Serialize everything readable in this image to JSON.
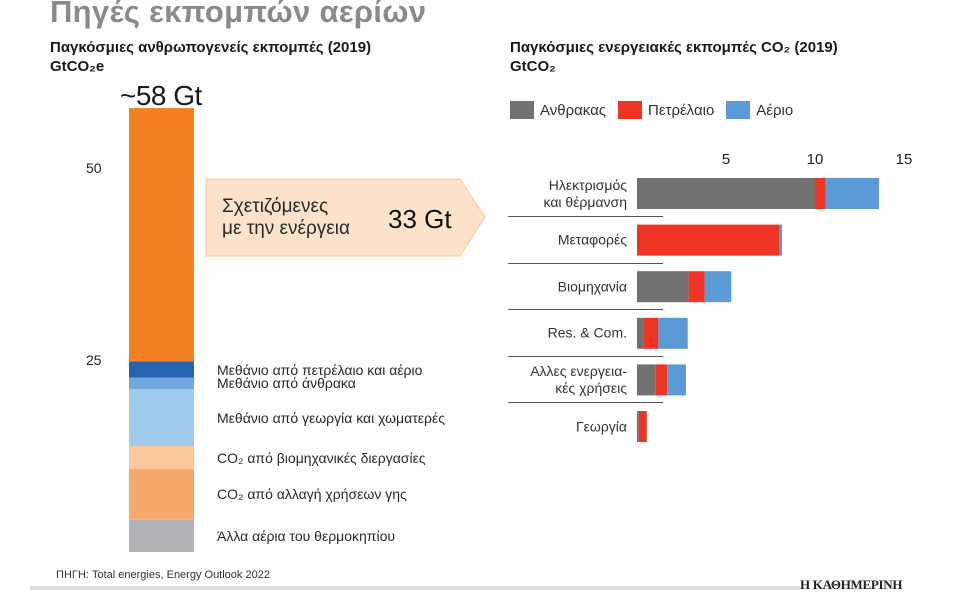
{
  "title": "Πηγές εκπομπών αερίων",
  "footer": {
    "source": "ΠΗΓΗ: Total energies, Energy Outlook 2022",
    "logo": "Η ΚΑΘΗΜΕΡΙΝΗ"
  },
  "chart_data": [
    {
      "type": "bar",
      "stacked": true,
      "title": "Παγκόσμιες ανθρωπογενείς εκπομπές (2019)",
      "ylabel": "GtCO₂e",
      "total_label": "~58 Gt",
      "ylim": [
        0,
        58
      ],
      "yticks": [
        "25",
        "50"
      ],
      "ytick_values": [
        25,
        50
      ],
      "segments": [
        {
          "name": "Άλλα αέρια του θερμοκηπίου",
          "value": 4.2,
          "color": "#B1B2B5"
        },
        {
          "name": "CO₂ από αλλαγή χρήσεων γης",
          "value": 6.6,
          "color": "#F6A86A"
        },
        {
          "name": "CO₂ από βιομηχανικές διεργασίες",
          "value": 3.0,
          "color": "#FCC79A"
        },
        {
          "name": "Μεθάνιο από γεωργία και χωματερές",
          "value": 7.4,
          "color": "#9ECAEC"
        },
        {
          "name": "Μεθάνιο από άνθρακα",
          "value": 1.5,
          "color": "#6FA8DC"
        },
        {
          "name": "Μεθάνιο από πετρέλαιο και αέριο",
          "value": 2.1,
          "color": "#2563B0"
        },
        {
          "name": "Σχετιζόμενες με την ενέργεια",
          "value": 33,
          "color": "#F47F20",
          "unlabeled": true
        }
      ],
      "callout": {
        "line1": "Σχετιζόμενες",
        "line2": "με την ενέργεια",
        "value": "33 Gt",
        "color": "#FCE1CB"
      }
    },
    {
      "type": "bar",
      "orientation": "horizontal",
      "stacked": true,
      "title": "Παγκόσμιες ενεργειακές εκπομπές CO₂ (2019)",
      "xlabel": "GtCO₂",
      "xlim": [
        0,
        15
      ],
      "xticks": [
        "5",
        "10",
        "15"
      ],
      "xtick_values": [
        5,
        10,
        15
      ],
      "legend": "top-left",
      "categories": [
        [
          "Ηλεκτρισμός",
          "και θέρμανση"
        ],
        [
          "Μεταφορές"
        ],
        [
          "Βιομηχανία"
        ],
        [
          "Res. & Com."
        ],
        [
          "Αλλες ενεργεια-",
          "κές χρήσεις"
        ],
        [
          "Γεωργία"
        ]
      ],
      "series": [
        {
          "name": "Ανθρακας",
          "color": "#717174",
          "values": [
            10.0,
            0,
            2.9,
            0.35,
            1.05,
            0.1
          ]
        },
        {
          "name": "Πετρέλαιο",
          "color": "#EE3524",
          "values": [
            0.6,
            8.0,
            0.9,
            0.85,
            0.65,
            0.45
          ]
        },
        {
          "name": "Αέριο",
          "color": "#5B9BD5",
          "values": [
            3.0,
            0.15,
            1.5,
            1.65,
            1.05,
            0
          ]
        }
      ]
    }
  ]
}
